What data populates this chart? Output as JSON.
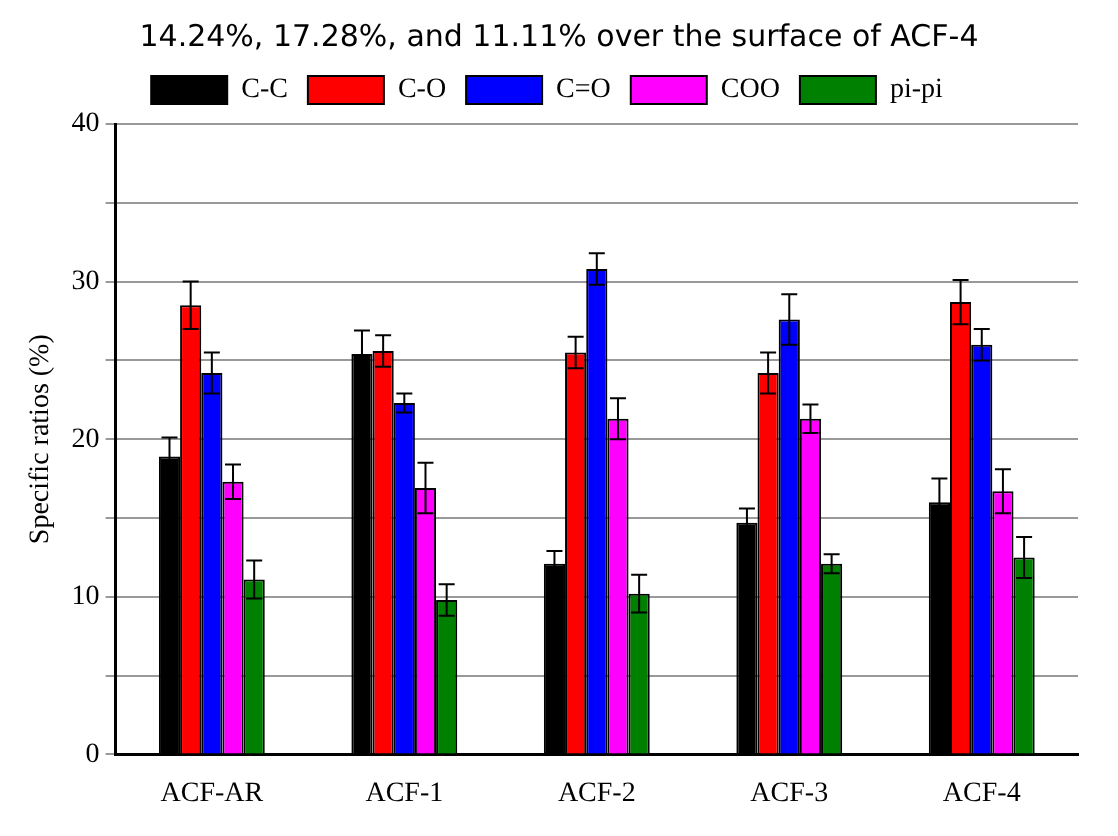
{
  "chart_data": {
    "type": "bar",
    "ylabel": "Specific ratios (%)",
    "annotations": [
      "14.24%, 17.28%, and 11.11% over the surface of ACF-4"
    ],
    "categories": [
      "ACF-AR",
      "ACF-1",
      "ACF-2",
      "ACF-3",
      "ACF-4"
    ],
    "series": [
      {
        "name": "C-C",
        "color": "#000000",
        "values": [
          18.9,
          25.4,
          12.1,
          14.7,
          16.0
        ],
        "errors": [
          1.2,
          1.5,
          0.8,
          0.9,
          1.5
        ]
      },
      {
        "name": "C-O",
        "color": "#ff0000",
        "values": [
          28.5,
          25.6,
          25.5,
          24.2,
          28.7
        ],
        "errors": [
          1.5,
          1.0,
          1.0,
          1.3,
          1.4
        ]
      },
      {
        "name": "C=O",
        "color": "#0000ff",
        "values": [
          24.2,
          22.3,
          30.8,
          27.6,
          26.0
        ],
        "errors": [
          1.3,
          0.6,
          1.0,
          1.6,
          1.0
        ]
      },
      {
        "name": "COO",
        "color": "#ff00ff",
        "values": [
          17.3,
          16.9,
          21.3,
          21.3,
          16.7
        ],
        "errors": [
          1.1,
          1.6,
          1.3,
          0.9,
          1.4
        ]
      },
      {
        "name": "pi-pi",
        "color": "#008000",
        "values": [
          11.1,
          9.8,
          10.2,
          12.1,
          12.5
        ],
        "errors": [
          1.2,
          1.0,
          1.2,
          0.6,
          1.3
        ]
      }
    ],
    "ylim": [
      0,
      40
    ],
    "yticks": [
      0,
      {
        "value": 5,
        "label": null
      },
      10,
      {
        "value": 15,
        "label": null
      },
      20,
      {
        "value": 25,
        "label": null
      },
      30,
      {
        "value": 35,
        "label": null
      },
      40
    ],
    "grid": "y",
    "legend": "top"
  }
}
